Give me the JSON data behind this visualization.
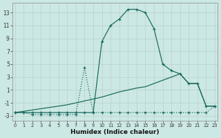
{
  "xlabel": "Humidex (Indice chaleur)",
  "bg_color": "#cce8e4",
  "grid_color": "#c8dcd8",
  "line_color": "#1a6b5e",
  "xlim": [
    -0.3,
    23.3
  ],
  "ylim": [
    -3.8,
    14.5
  ],
  "xticks": [
    0,
    1,
    2,
    3,
    4,
    5,
    6,
    7,
    8,
    9,
    10,
    11,
    12,
    13,
    14,
    15,
    16,
    17,
    18,
    19,
    20,
    21,
    22,
    23
  ],
  "yticks": [
    -3,
    -1,
    1,
    3,
    5,
    7,
    9,
    11,
    13
  ],
  "series": [
    {
      "x": [
        0,
        1,
        2,
        3,
        4,
        5,
        6,
        7,
        8,
        9,
        10,
        11,
        12,
        13,
        14,
        15,
        16,
        17,
        18,
        19,
        20,
        21,
        22,
        23
      ],
      "y": [
        -2.5,
        -2.5,
        -2.5,
        -2.5,
        -2.5,
        -2.5,
        -2.5,
        -2.5,
        -2.5,
        -2.5,
        8.5,
        11.0,
        12.0,
        13.5,
        13.5,
        13.0,
        10.5,
        5.0,
        4.0,
        3.5,
        2.0,
        2.0,
        -1.5,
        -1.5
      ],
      "marker": true,
      "linestyle": "-",
      "linewidth": 0.9
    },
    {
      "x": [
        0,
        1,
        2,
        3,
        4,
        5,
        6,
        7,
        8,
        9,
        10,
        11,
        12,
        13,
        14,
        15,
        16,
        17,
        18,
        19,
        20,
        21,
        22,
        23
      ],
      "y": [
        -2.5,
        -2.3,
        -2.1,
        -1.9,
        -1.7,
        -1.5,
        -1.3,
        -1.0,
        -0.7,
        -0.4,
        -0.1,
        0.3,
        0.7,
        1.0,
        1.3,
        1.5,
        2.0,
        2.5,
        3.0,
        3.5,
        2.0,
        2.0,
        -1.5,
        -1.5
      ],
      "marker": false,
      "linestyle": "-",
      "linewidth": 0.9
    },
    {
      "x": [
        0,
        1,
        2,
        3,
        4,
        5,
        6,
        7,
        8,
        9,
        10,
        11,
        12,
        13,
        14,
        15,
        16,
        17,
        18,
        19,
        20,
        21,
        22,
        23
      ],
      "y": [
        -2.5,
        -2.5,
        -2.8,
        -2.8,
        -2.8,
        -2.8,
        -2.8,
        -2.8,
        4.5,
        -2.5,
        -2.5,
        -2.5,
        -2.5,
        -2.5,
        -2.5,
        -2.5,
        -2.5,
        -2.5,
        -2.5,
        -2.5,
        -2.5,
        -2.5,
        -2.5,
        -1.5
      ],
      "marker": true,
      "linestyle": ":",
      "linewidth": 0.9
    }
  ]
}
